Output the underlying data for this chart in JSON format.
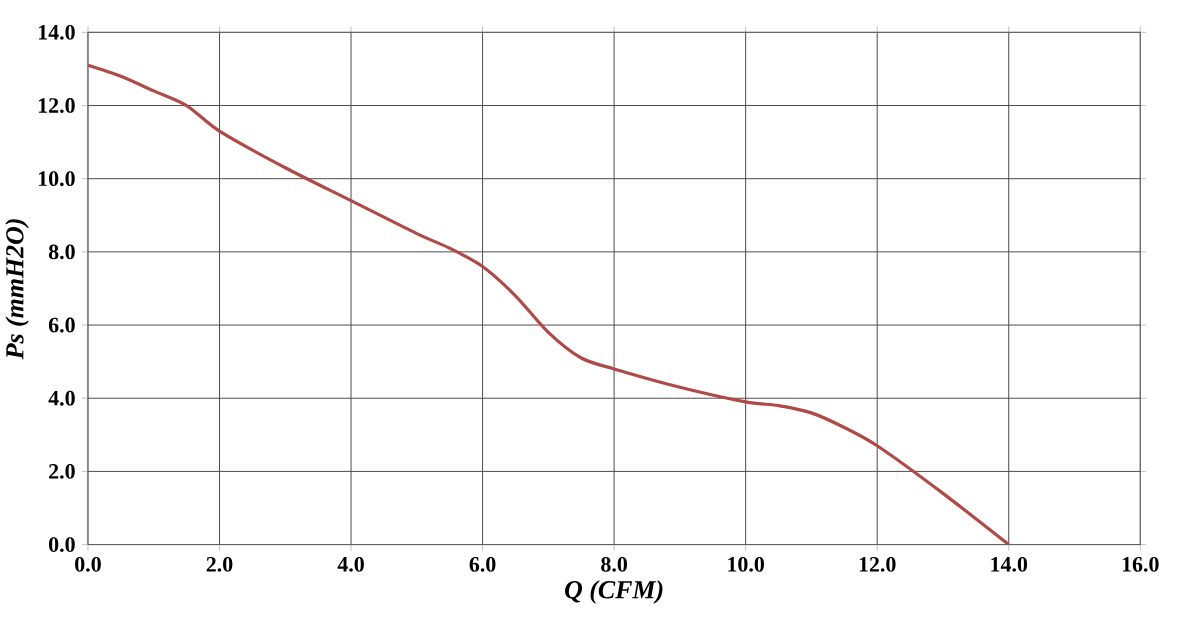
{
  "chart_data": {
    "type": "line",
    "xlabel": "Q (CFM)",
    "ylabel": "Ps (mmH2O)",
    "x": [
      0,
      0.5,
      1,
      1.5,
      2,
      3,
      4,
      5,
      5.5,
      6,
      6.5,
      7,
      7.5,
      8,
      9,
      10,
      10.5,
      11,
      11.5,
      12,
      13,
      14
    ],
    "series": [
      {
        "color": "#b04a48",
        "values": [
          13.1,
          12.8,
          12.4,
          12.0,
          11.3,
          10.3,
          9.4,
          8.5,
          8.1,
          7.6,
          6.8,
          5.8,
          5.1,
          4.8,
          4.3,
          3.9,
          3.8,
          3.6,
          3.2,
          2.7,
          1.4,
          0.0
        ]
      }
    ],
    "xlim": [
      0,
      16
    ],
    "ylim": [
      0,
      14
    ],
    "xticks": [
      {
        "value": 0,
        "label": "0.0"
      },
      {
        "value": 2,
        "label": "2.0"
      },
      {
        "value": 4,
        "label": "4.0"
      },
      {
        "value": 6,
        "label": "6.0"
      },
      {
        "value": 8,
        "label": "8.0"
      },
      {
        "value": 10,
        "label": "10.0"
      },
      {
        "value": 12,
        "label": "12.0"
      },
      {
        "value": 14,
        "label": "14.0"
      },
      {
        "value": 16,
        "label": "16.0"
      }
    ],
    "yticks": [
      {
        "value": 0,
        "label": "0.0"
      },
      {
        "value": 2,
        "label": "2.0"
      },
      {
        "value": 4,
        "label": "4.0"
      },
      {
        "value": 6,
        "label": "6.0"
      },
      {
        "value": 8,
        "label": "8.0"
      },
      {
        "value": 10,
        "label": "10.0"
      },
      {
        "value": 12,
        "label": "12.0"
      },
      {
        "value": 14,
        "label": "14.0"
      }
    ],
    "grid": true,
    "marker": "none",
    "line_style": "solid"
  }
}
